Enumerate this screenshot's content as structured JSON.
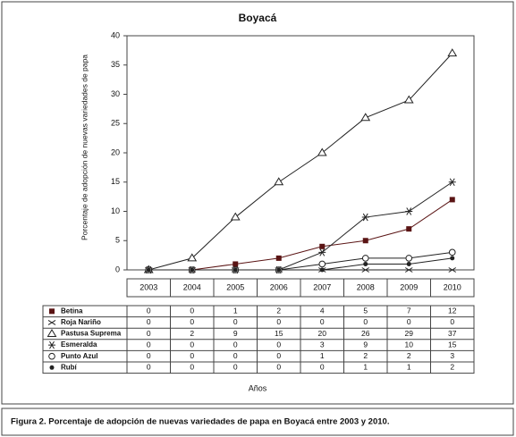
{
  "chart_data": {
    "type": "line",
    "title": "Boyacá",
    "y_label": "Porcentaje de adopción de nuevas variedades de papa",
    "x_label": "Años",
    "caption": "Figura 2.  Porcentaje de adopción de nuevas variedades de papa en Boyacá entre 2003 y 2010.",
    "categories": [
      "2003",
      "2004",
      "2005",
      "2006",
      "2007",
      "2008",
      "2009",
      "2010"
    ],
    "ylim": [
      0,
      40
    ],
    "yticks": [
      0,
      5,
      10,
      15,
      20,
      25,
      30,
      35,
      40
    ],
    "series": [
      {
        "name": "Betina",
        "color": "#5a1414",
        "marker": "square",
        "values": [
          0,
          0,
          1,
          2,
          4,
          5,
          7,
          12
        ]
      },
      {
        "name": "Roja Nariño",
        "color": "#222222",
        "marker": "cross",
        "values": [
          0,
          0,
          0,
          0,
          0,
          0,
          0,
          0
        ]
      },
      {
        "name": "Pastusa Suprema",
        "color": "#222222",
        "marker": "triangle",
        "values": [
          0,
          2,
          9,
          15,
          20,
          26,
          29,
          37
        ]
      },
      {
        "name": "Esmeralda",
        "color": "#222222",
        "marker": "asterisk",
        "values": [
          0,
          0,
          0,
          0,
          3,
          9,
          10,
          15
        ]
      },
      {
        "name": "Punto Azul",
        "color": "#222222",
        "marker": "circle",
        "values": [
          0,
          0,
          0,
          0,
          1,
          2,
          2,
          3
        ]
      },
      {
        "name": "Rubí",
        "color": "#222222",
        "marker": "dot",
        "values": [
          0,
          0,
          0,
          0,
          0,
          1,
          1,
          2
        ]
      }
    ]
  }
}
